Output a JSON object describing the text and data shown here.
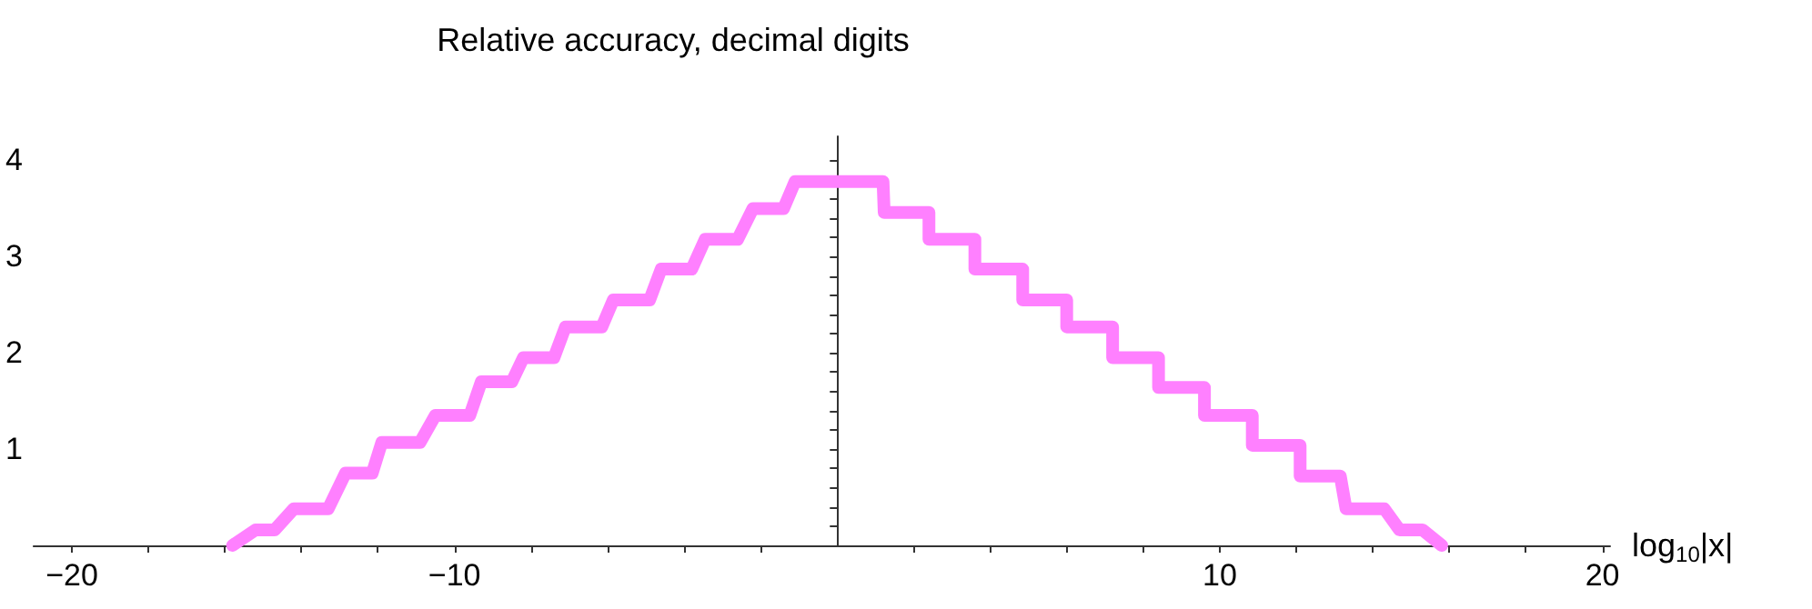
{
  "chart_data": {
    "type": "line",
    "title": "Relative accuracy, decimal digits",
    "xlabel": "log$_{10}$|x|",
    "xlim": [
      -21,
      20.2
    ],
    "ylim": [
      0,
      4.25
    ],
    "xticks": [
      {
        "value": -20,
        "label": "−20"
      },
      {
        "value": -18,
        "label": null
      },
      {
        "value": -16,
        "label": null
      },
      {
        "value": -14,
        "label": null
      },
      {
        "value": -12,
        "label": null
      },
      {
        "value": -10,
        "label": "−10"
      },
      {
        "value": -8,
        "label": null
      },
      {
        "value": -6,
        "label": null
      },
      {
        "value": -4,
        "label": null
      },
      {
        "value": -2,
        "label": null
      },
      {
        "value": 2,
        "label": null
      },
      {
        "value": 4,
        "label": null
      },
      {
        "value": 6,
        "label": null
      },
      {
        "value": 8,
        "label": null
      },
      {
        "value": 10,
        "label": "10"
      },
      {
        "value": 12,
        "label": null
      },
      {
        "value": 14,
        "label": null
      },
      {
        "value": 16,
        "label": null
      },
      {
        "value": 18,
        "label": null
      },
      {
        "value": 20,
        "label": "20"
      }
    ],
    "yticks": [
      {
        "value": 0.2,
        "label": null
      },
      {
        "value": 0.4,
        "label": null
      },
      {
        "value": 0.6,
        "label": null
      },
      {
        "value": 0.8,
        "label": null
      },
      1,
      {
        "value": 1.2,
        "label": null
      },
      {
        "value": 1.4,
        "label": null
      },
      {
        "value": 1.6,
        "label": null
      },
      {
        "value": 1.8,
        "label": null
      },
      2,
      {
        "value": 2.2,
        "label": null
      },
      {
        "value": 2.4,
        "label": null
      },
      {
        "value": 2.6,
        "label": null
      },
      {
        "value": 2.8,
        "label": null
      },
      3,
      {
        "value": 3.2,
        "label": null
      },
      {
        "value": 3.4,
        "label": null
      },
      {
        "value": 3.6,
        "label": null
      },
      {
        "value": 3.8,
        "label": null
      },
      4
    ],
    "series": [
      {
        "color": "#ff80ff",
        "x": [
          -15.8,
          -15.2,
          -14.7,
          -14.2,
          -13.3,
          -12.85,
          -12.15,
          -11.9,
          -10.9,
          -10.5,
          -9.6,
          -9.3,
          -8.5,
          -8.2,
          -7.4,
          -7.1,
          -6.15,
          -5.85,
          -4.9,
          -4.6,
          -3.8,
          -3.45,
          -2.6,
          -2.2,
          -1.4,
          -1.1,
          0,
          1.2,
          1.23,
          2.4,
          2.4,
          3.6,
          3.6,
          4.85,
          4.85,
          6.0,
          6.0,
          7.2,
          7.2,
          8.4,
          8.4,
          9.6,
          9.6,
          10.85,
          10.85,
          12.1,
          12.1,
          13.15,
          13.3,
          14.3,
          14.7,
          15.3,
          15.8
        ],
        "values": [
          0,
          0.16,
          0.16,
          0.38,
          0.38,
          0.75,
          0.75,
          1.07,
          1.07,
          1.35,
          1.35,
          1.7,
          1.7,
          1.95,
          1.95,
          2.27,
          2.27,
          2.55,
          2.55,
          2.87,
          2.87,
          3.18,
          3.18,
          3.5,
          3.5,
          3.78,
          3.78,
          3.78,
          3.46,
          3.46,
          3.18,
          3.18,
          2.87,
          2.87,
          2.55,
          2.55,
          2.27,
          2.27,
          1.95,
          1.95,
          1.64,
          1.64,
          1.35,
          1.35,
          1.04,
          1.04,
          0.72,
          0.72,
          0.38,
          0.38,
          0.16,
          0.16,
          0
        ]
      }
    ]
  }
}
